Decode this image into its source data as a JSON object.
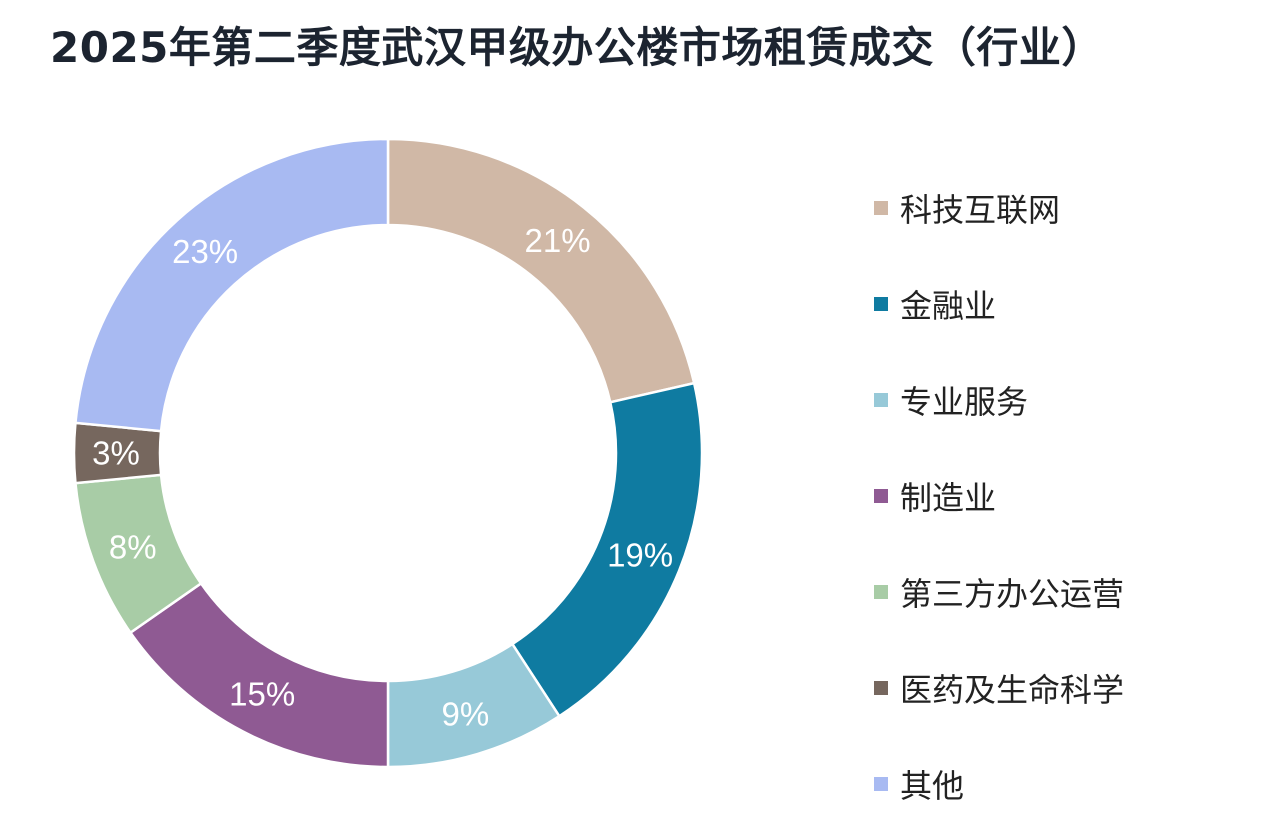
{
  "title": "2025年第二季度武汉甲级办公楼市场租赁成交（行业）",
  "chart_data": {
    "type": "donut",
    "title": "2025年第二季度武汉甲级办公楼市场租赁成交（行业）",
    "unit": "%",
    "categories": [
      "科技互联网",
      "金融业",
      "专业服务",
      "制造业",
      "第三方办公运营",
      "医药及生命科学",
      "其他"
    ],
    "values": [
      21,
      19,
      9,
      15,
      8,
      3,
      23
    ],
    "labels": [
      "21%",
      "19%",
      "9%",
      "15%",
      "8%",
      "3%",
      "23%"
    ],
    "colors": [
      "#d0b8a6",
      "#0f7ba1",
      "#97c9d8",
      "#8f5a93",
      "#a8cca6",
      "#76675e",
      "#a8baf2"
    ],
    "legend_position": "right"
  }
}
